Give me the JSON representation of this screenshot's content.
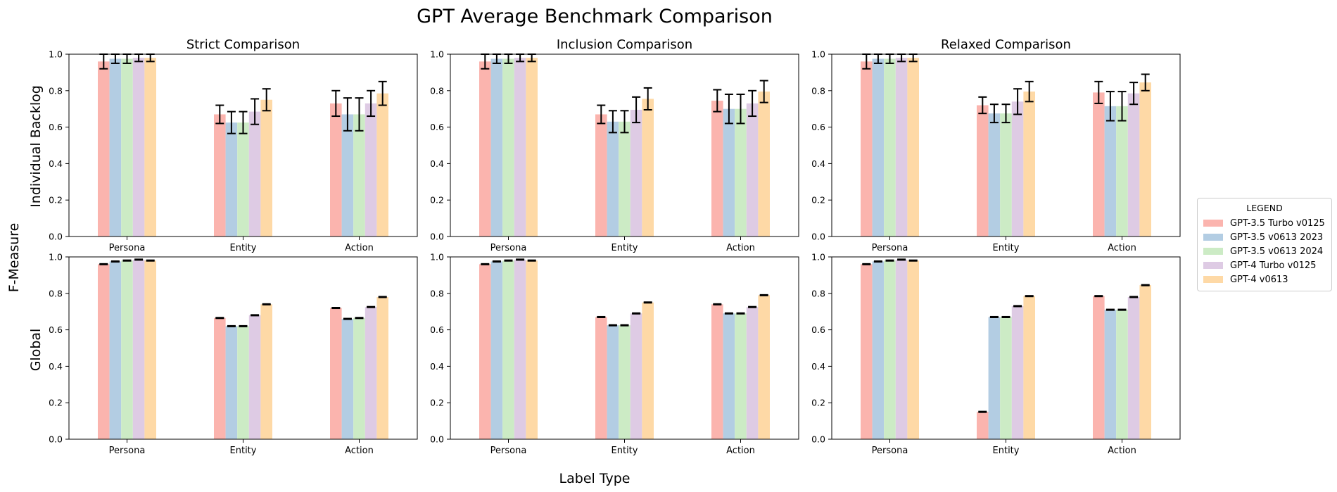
{
  "figure": {
    "title": "GPT Average Benchmark Comparison",
    "xlabel": "Label Type",
    "ylabel": "F-Measure"
  },
  "legend": {
    "title": "LEGEND",
    "items": [
      {
        "label": "GPT-3.5 Turbo v0125",
        "color": "#fbb4ae"
      },
      {
        "label": "GPT-3.5 v0613 2023",
        "color": "#b3cde3"
      },
      {
        "label": "GPT-3.5 v0613 2024",
        "color": "#ccebc5"
      },
      {
        "label": "GPT-4 Turbo v0125",
        "color": "#decbe4"
      },
      {
        "label": "GPT-4 v0613",
        "color": "#fed9a6"
      }
    ]
  },
  "chart_data": [
    {
      "type": "bar",
      "title": "Strict Comparison",
      "row_label": "Individual Backlog",
      "categories": [
        "Persona",
        "Entity",
        "Action"
      ],
      "ylim": [
        0,
        1.0
      ],
      "yticks": [
        "0.0",
        "0.2",
        "0.4",
        "0.6",
        "0.8",
        "1.0"
      ],
      "series": [
        {
          "name": "GPT-3.5 Turbo v0125",
          "values": [
            0.96,
            0.67,
            0.73
          ],
          "errors": [
            0.04,
            0.05,
            0.07
          ]
        },
        {
          "name": "GPT-3.5 v0613 2023",
          "values": [
            0.975,
            0.625,
            0.67
          ],
          "errors": [
            0.025,
            0.06,
            0.09
          ]
        },
        {
          "name": "GPT-3.5 v0613 2024",
          "values": [
            0.975,
            0.625,
            0.67
          ],
          "errors": [
            0.025,
            0.06,
            0.09
          ]
        },
        {
          "name": "GPT-4 Turbo v0125",
          "values": [
            0.98,
            0.685,
            0.73
          ],
          "errors": [
            0.02,
            0.07,
            0.07
          ]
        },
        {
          "name": "GPT-4 v0613",
          "values": [
            0.98,
            0.75,
            0.785
          ],
          "errors": [
            0.02,
            0.06,
            0.065
          ]
        }
      ]
    },
    {
      "type": "bar",
      "title": "Inclusion Comparison",
      "row_label": "Individual Backlog",
      "categories": [
        "Persona",
        "Entity",
        "Action"
      ],
      "ylim": [
        0,
        1.0
      ],
      "yticks": [
        "0.0",
        "0.2",
        "0.4",
        "0.6",
        "0.8",
        "1.0"
      ],
      "series": [
        {
          "name": "GPT-3.5 Turbo v0125",
          "values": [
            0.96,
            0.67,
            0.745
          ],
          "errors": [
            0.04,
            0.05,
            0.06
          ]
        },
        {
          "name": "GPT-3.5 v0613 2023",
          "values": [
            0.975,
            0.63,
            0.7
          ],
          "errors": [
            0.025,
            0.06,
            0.08
          ]
        },
        {
          "name": "GPT-3.5 v0613 2024",
          "values": [
            0.975,
            0.63,
            0.7
          ],
          "errors": [
            0.025,
            0.06,
            0.08
          ]
        },
        {
          "name": "GPT-4 Turbo v0125",
          "values": [
            0.98,
            0.695,
            0.73
          ],
          "errors": [
            0.02,
            0.07,
            0.07
          ]
        },
        {
          "name": "GPT-4 v0613",
          "values": [
            0.98,
            0.755,
            0.795
          ],
          "errors": [
            0.02,
            0.06,
            0.06
          ]
        }
      ]
    },
    {
      "type": "bar",
      "title": "Relaxed Comparison",
      "row_label": "Individual Backlog",
      "categories": [
        "Persona",
        "Entity",
        "Action"
      ],
      "ylim": [
        0,
        1.0
      ],
      "yticks": [
        "0.0",
        "0.2",
        "0.4",
        "0.6",
        "0.8",
        "1.0"
      ],
      "series": [
        {
          "name": "GPT-3.5 Turbo v0125",
          "values": [
            0.96,
            0.72,
            0.79
          ],
          "errors": [
            0.04,
            0.045,
            0.06
          ]
        },
        {
          "name": "GPT-3.5 v0613 2023",
          "values": [
            0.975,
            0.675,
            0.715
          ],
          "errors": [
            0.025,
            0.05,
            0.08
          ]
        },
        {
          "name": "GPT-3.5 v0613 2024",
          "values": [
            0.975,
            0.675,
            0.715
          ],
          "errors": [
            0.025,
            0.05,
            0.08
          ]
        },
        {
          "name": "GPT-4 Turbo v0125",
          "values": [
            0.98,
            0.74,
            0.785
          ],
          "errors": [
            0.02,
            0.07,
            0.06
          ]
        },
        {
          "name": "GPT-4 v0613",
          "values": [
            0.98,
            0.795,
            0.845
          ],
          "errors": [
            0.02,
            0.055,
            0.045
          ]
        }
      ]
    },
    {
      "type": "bar",
      "title": "",
      "row_label": "Global",
      "categories": [
        "Persona",
        "Entity",
        "Action"
      ],
      "ylim": [
        0,
        1.0
      ],
      "yticks": [
        "0.0",
        "0.2",
        "0.4",
        "0.6",
        "0.8",
        "1.0"
      ],
      "series": [
        {
          "name": "GPT-3.5 Turbo v0125",
          "values": [
            0.96,
            0.665,
            0.72
          ],
          "errors": [
            0.002,
            0.002,
            0.002
          ]
        },
        {
          "name": "GPT-3.5 v0613 2023",
          "values": [
            0.975,
            0.62,
            0.66
          ],
          "errors": [
            0.002,
            0.002,
            0.002
          ]
        },
        {
          "name": "GPT-3.5 v0613 2024",
          "values": [
            0.98,
            0.62,
            0.665
          ],
          "errors": [
            0.002,
            0.002,
            0.002
          ]
        },
        {
          "name": "GPT-4 Turbo v0125",
          "values": [
            0.985,
            0.68,
            0.725
          ],
          "errors": [
            0.002,
            0.002,
            0.002
          ]
        },
        {
          "name": "GPT-4 v0613",
          "values": [
            0.98,
            0.74,
            0.78
          ],
          "errors": [
            0.002,
            0.002,
            0.002
          ]
        }
      ]
    },
    {
      "type": "bar",
      "title": "",
      "row_label": "Global",
      "categories": [
        "Persona",
        "Entity",
        "Action"
      ],
      "ylim": [
        0,
        1.0
      ],
      "yticks": [
        "0.0",
        "0.2",
        "0.4",
        "0.6",
        "0.8",
        "1.0"
      ],
      "series": [
        {
          "name": "GPT-3.5 Turbo v0125",
          "values": [
            0.96,
            0.67,
            0.74
          ],
          "errors": [
            0.002,
            0.002,
            0.002
          ]
        },
        {
          "name": "GPT-3.5 v0613 2023",
          "values": [
            0.975,
            0.625,
            0.69
          ],
          "errors": [
            0.002,
            0.002,
            0.002
          ]
        },
        {
          "name": "GPT-3.5 v0613 2024",
          "values": [
            0.98,
            0.625,
            0.69
          ],
          "errors": [
            0.002,
            0.002,
            0.002
          ]
        },
        {
          "name": "GPT-4 Turbo v0125",
          "values": [
            0.985,
            0.69,
            0.725
          ],
          "errors": [
            0.002,
            0.002,
            0.002
          ]
        },
        {
          "name": "GPT-4 v0613",
          "values": [
            0.98,
            0.75,
            0.79
          ],
          "errors": [
            0.002,
            0.002,
            0.002
          ]
        }
      ]
    },
    {
      "type": "bar",
      "title": "",
      "row_label": "Global",
      "categories": [
        "Persona",
        "Entity",
        "Action"
      ],
      "ylim": [
        0,
        1.0
      ],
      "yticks": [
        "0.0",
        "0.2",
        "0.4",
        "0.6",
        "0.8",
        "1.0"
      ],
      "series": [
        {
          "name": "GPT-3.5 Turbo v0125",
          "values": [
            0.96,
            0.15,
            0.785
          ],
          "errors": [
            0.002,
            0.002,
            0.002
          ]
        },
        {
          "name": "GPT-3.5 v0613 2023",
          "values": [
            0.975,
            0.67,
            0.71
          ],
          "errors": [
            0.002,
            0.002,
            0.002
          ]
        },
        {
          "name": "GPT-3.5 v0613 2024",
          "values": [
            0.98,
            0.67,
            0.71
          ],
          "errors": [
            0.002,
            0.002,
            0.002
          ]
        },
        {
          "name": "GPT-4 Turbo v0125",
          "values": [
            0.985,
            0.73,
            0.78
          ],
          "errors": [
            0.002,
            0.002,
            0.002
          ]
        },
        {
          "name": "GPT-4 v0613",
          "values": [
            0.98,
            0.785,
            0.845
          ],
          "errors": [
            0.002,
            0.002,
            0.002
          ]
        }
      ]
    }
  ]
}
